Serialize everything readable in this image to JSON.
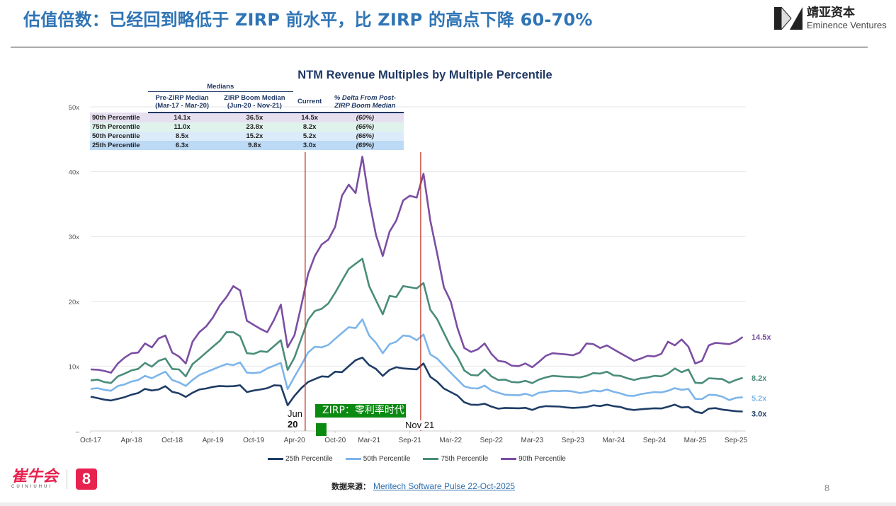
{
  "header": {
    "title": "估值倍数：已经回到略低于 ZIRP 前水平，比 ZIRP 的高点下降 60-70%",
    "brand_cn": "靖亚资本",
    "brand_en": "Eminence Ventures"
  },
  "table": {
    "group_header": "Medians",
    "columns": [
      "Pre-ZIRP Median",
      "(Mar-17 - Mar-20)",
      "ZIRP Boom Median",
      "(Jun-20 - Nov-21)",
      "Current",
      "% Delta From Post-",
      "ZIRP Boom Median"
    ],
    "rows": [
      {
        "label": "90th Percentile",
        "pre": "14.1x",
        "boom": "36.5x",
        "current": "14.5x",
        "delta": "(60%)"
      },
      {
        "label": "75th Percentile",
        "pre": "11.0x",
        "boom": "23.8x",
        "current": "8.2x",
        "delta": "(66%)"
      },
      {
        "label": "50th Percentile",
        "pre": "8.5x",
        "boom": "15.2x",
        "current": "5.2x",
        "delta": "(66%)"
      },
      {
        "label": "25th Percentile",
        "pre": "6.3x",
        "boom": "9.8x",
        "current": "3.0x",
        "delta": "(69%)"
      }
    ]
  },
  "annotations": {
    "zirp_label": "ZIRP：零利率时代",
    "jun_label": "Jun",
    "jun_year": "20",
    "nov_label": "Nov 21"
  },
  "chart_data": {
    "type": "line",
    "title": "NTM Revenue Multiples by Multiple Percentile",
    "xlabel": "",
    "ylabel": "",
    "ylim": [
      0,
      50
    ],
    "yticks": [
      "",
      "10x",
      "20x",
      "30x",
      "40x",
      "50x"
    ],
    "ytick_values": [
      0,
      10,
      20,
      30,
      40,
      50
    ],
    "x_start": "Oct-17",
    "x_interval": "monthly",
    "xtick_labels": [
      "Oct-17",
      "Apr-18",
      "Oct-18",
      "Apr-19",
      "Oct-19",
      "Apr-20",
      "Oct-20",
      "Mar-21",
      "Sep-21",
      "Mar-22",
      "Sep-22",
      "Mar-23",
      "Sep-23",
      "Mar-24",
      "Sep-24",
      "Mar-25",
      "Sep-25"
    ],
    "xtick_months": [
      0,
      6,
      12,
      18,
      24,
      30,
      36,
      41,
      47,
      53,
      59,
      65,
      71,
      77,
      83,
      89,
      95
    ],
    "vlines": [
      {
        "label": "Jun 20",
        "month": 32
      },
      {
        "label": "Nov 21",
        "month": 49
      }
    ],
    "grid": true,
    "legend_position": "bottom",
    "series": [
      {
        "name": "25th Percentile",
        "color": "#1f3d66",
        "end_label": "3.0x",
        "values": [
          5.3,
          5,
          4.8,
          4.7,
          5,
          5.3,
          5.5,
          5.8,
          6.5,
          6.3,
          6.5,
          6.8,
          6,
          5.8,
          5.3,
          6,
          6.3,
          6.5,
          6.8,
          7,
          7,
          6.8,
          7,
          6,
          6.3,
          6.5,
          6.5,
          7,
          7,
          4,
          5.5,
          6.5,
          7.5,
          8,
          8.5,
          8.5,
          9,
          9,
          10,
          11,
          11.5,
          10,
          9.5,
          8.5,
          9.5,
          10,
          9.5,
          9.5,
          9.5,
          10.5,
          8.5,
          7.5,
          6.5,
          6,
          5.5,
          4.5,
          4,
          4,
          4.2,
          3.8,
          3.5,
          3.5,
          3.5,
          3.5,
          3.6,
          3.3,
          3.6,
          3.8,
          3.8,
          3.8,
          3.7,
          3.5,
          3.6,
          3.7,
          4,
          3.9,
          4,
          3.8,
          3.7,
          3.4,
          3.3,
          3.3,
          3.4,
          3.5,
          3.5,
          3.8,
          4,
          3.6,
          3.7,
          3,
          2.8,
          3.4,
          3.5,
          3.3,
          3.2,
          3.1,
          3.0
        ]
      },
      {
        "name": "50th Percentile",
        "color": "#7db5ea",
        "end_label": "5.2x",
        "values": [
          6.5,
          6.5,
          6.3,
          6.2,
          7,
          7.3,
          7.5,
          7.8,
          8.5,
          8.2,
          8.8,
          9,
          7.8,
          7.5,
          7,
          8,
          8.5,
          9,
          9.5,
          10,
          10.5,
          10,
          10.5,
          9,
          9,
          9.2,
          9.5,
          10,
          10.5,
          6.5,
          8.5,
          10,
          12,
          13,
          13,
          13.5,
          14,
          15,
          16,
          16,
          17.5,
          14.5,
          13.5,
          12,
          13.5,
          14,
          14.5,
          14.5,
          14,
          15,
          12,
          11,
          10,
          9,
          8,
          7,
          6.5,
          6.5,
          7,
          6.3,
          6,
          5.5,
          5.5,
          5.5,
          5.8,
          5.5,
          5.8,
          6,
          6.2,
          6.2,
          6.3,
          6,
          5.8,
          6,
          6.3,
          6.2,
          6.3,
          6,
          5.8,
          5.5,
          5.5,
          5.6,
          5.8,
          6,
          6,
          6.3,
          6.5,
          6.3,
          6.5,
          5,
          5,
          5.5,
          5.5,
          5.3,
          4.8,
          5.2,
          5.2
        ]
      },
      {
        "name": "75th Percentile",
        "color": "#4a8c7a",
        "end_label": "8.2x",
        "values": [
          7.8,
          7.8,
          7.5,
          7.4,
          8.5,
          9,
          9.2,
          9.5,
          10.5,
          10,
          11,
          11,
          9.5,
          9.5,
          8.5,
          10.5,
          11,
          12,
          13,
          14,
          15.5,
          15,
          14.5,
          12,
          12,
          12.5,
          12,
          13,
          14,
          9.5,
          11.5,
          14,
          17,
          18.5,
          19,
          20,
          21,
          23,
          25,
          26,
          27,
          22,
          20,
          18,
          21,
          21,
          22,
          22,
          22,
          23,
          19,
          17,
          15,
          13,
          11.5,
          9.5,
          8.5,
          8.5,
          9.5,
          8.5,
          8,
          7.8,
          7.5,
          7.5,
          7.8,
          7.5,
          7.8,
          8.2,
          8.5,
          8.5,
          8.5,
          8.2,
          8.2,
          8.5,
          9,
          9,
          9,
          8.5,
          8.5,
          8.2,
          8,
          8,
          8.2,
          8.5,
          8.5,
          9,
          9.5,
          9,
          9.5,
          7.5,
          7.5,
          8,
          8,
          8,
          7.5,
          8,
          8.2
        ]
      },
      {
        "name": "90th Percentile",
        "color": "#7b4ea3",
        "end_label": "14.5x",
        "values": [
          9.5,
          9.3,
          9.2,
          9.0,
          10.5,
          11.5,
          11.8,
          12,
          13.5,
          13,
          14.5,
          14.5,
          12,
          11.5,
          10.5,
          14,
          15,
          16,
          17.5,
          19.5,
          21,
          22,
          21.5,
          17,
          16.5,
          16,
          15,
          17,
          19.5,
          13,
          15,
          19,
          24,
          27,
          29,
          30,
          31,
          36,
          38,
          37,
          43,
          35,
          30,
          27,
          31,
          33,
          35,
          36,
          36,
          40,
          33,
          27,
          22,
          20,
          16,
          13,
          12,
          12.5,
          13.5,
          12,
          11,
          10.5,
          10,
          10,
          10.5,
          10,
          10.5,
          11.5,
          12,
          12,
          12,
          11.5,
          12,
          13.5,
          13.5,
          13,
          13,
          12.5,
          12,
          11.5,
          11,
          11,
          11.5,
          11.5,
          12,
          14,
          13,
          14,
          13,
          10.5,
          11,
          13,
          13.5,
          13.5,
          13.5,
          14,
          14.5
        ]
      }
    ]
  },
  "footer": {
    "source_label": "数据来源：",
    "source_link": "Meritech Software Pulse 22-Oct-2025",
    "page_number": "8",
    "logo_cn": "崔牛会",
    "logo_en": "CUINIUHUI"
  }
}
